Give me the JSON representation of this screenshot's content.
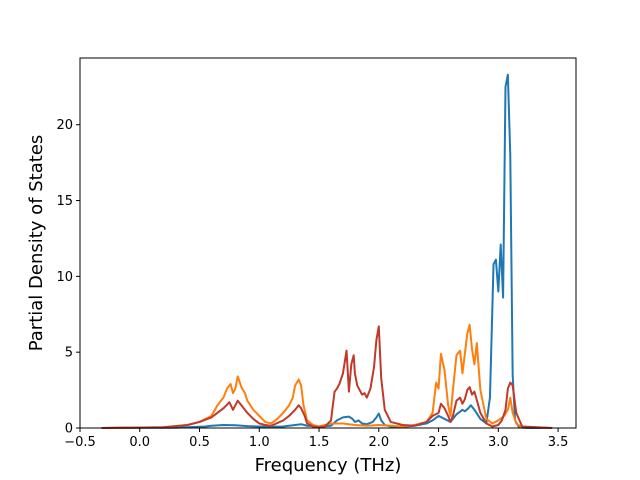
{
  "chart_data": {
    "type": "line",
    "title": "",
    "xlabel": "Frequency (THz)",
    "ylabel": "Partial Density of States",
    "xlim": [
      -0.5,
      3.65
    ],
    "ylim": [
      0,
      24.4
    ],
    "xticks": [
      -0.5,
      0.0,
      0.5,
      1.0,
      1.5,
      2.0,
      2.5,
      3.0,
      3.5
    ],
    "xtick_labels": [
      "−0.5",
      "0.0",
      "0.5",
      "1.0",
      "1.5",
      "2.0",
      "2.5",
      "3.0",
      "3.5"
    ],
    "yticks": [
      0,
      5,
      10,
      15,
      20
    ],
    "ytick_labels": [
      "0",
      "5",
      "10",
      "15",
      "20"
    ],
    "grid": false,
    "legend": false,
    "series": [
      {
        "color": "#1f77b4",
        "x": [
          -0.32,
          0.3,
          0.55,
          0.6,
          0.7,
          0.8,
          0.9,
          1.0,
          1.1,
          1.2,
          1.3,
          1.35,
          1.4,
          1.5,
          1.6,
          1.65,
          1.7,
          1.75,
          1.78,
          1.8,
          1.83,
          1.86,
          1.9,
          1.95,
          1.98,
          2.0,
          2.02,
          2.05,
          2.1,
          2.2,
          2.3,
          2.4,
          2.45,
          2.5,
          2.55,
          2.6,
          2.65,
          2.7,
          2.72,
          2.75,
          2.77,
          2.8,
          2.85,
          2.9,
          2.93,
          2.96,
          2.98,
          3.0,
          3.02,
          3.04,
          3.06,
          3.08,
          3.1,
          3.12,
          3.14,
          3.17,
          3.2,
          3.25,
          3.45
        ],
        "y": [
          0,
          0.02,
          0.1,
          0.15,
          0.2,
          0.18,
          0.12,
          0.1,
          0.08,
          0.1,
          0.2,
          0.25,
          0.15,
          0.1,
          0.15,
          0.5,
          0.7,
          0.75,
          0.6,
          0.4,
          0.5,
          0.3,
          0.25,
          0.4,
          0.7,
          0.95,
          0.5,
          0.2,
          0.1,
          0.08,
          0.15,
          0.3,
          0.5,
          0.8,
          0.6,
          0.4,
          0.9,
          1.2,
          1.1,
          1.3,
          1.5,
          1.2,
          0.6,
          0.3,
          2.0,
          10.8,
          11.1,
          9.0,
          12.1,
          8.6,
          22.5,
          23.3,
          18.0,
          3.5,
          0.5,
          0.1,
          0.02,
          0,
          0
        ]
      },
      {
        "color": "#ff7f0e",
        "x": [
          -0.32,
          0.2,
          0.4,
          0.5,
          0.6,
          0.65,
          0.7,
          0.73,
          0.76,
          0.78,
          0.8,
          0.82,
          0.85,
          0.88,
          0.9,
          0.95,
          1.0,
          1.05,
          1.1,
          1.15,
          1.2,
          1.25,
          1.28,
          1.3,
          1.33,
          1.35,
          1.37,
          1.4,
          1.45,
          1.5,
          1.55,
          1.6,
          1.7,
          1.8,
          1.9,
          2.0,
          2.1,
          2.2,
          2.3,
          2.4,
          2.45,
          2.48,
          2.5,
          2.52,
          2.55,
          2.58,
          2.6,
          2.62,
          2.65,
          2.68,
          2.7,
          2.72,
          2.74,
          2.76,
          2.78,
          2.8,
          2.82,
          2.85,
          2.9,
          2.95,
          3.0,
          3.05,
          3.08,
          3.1,
          3.12,
          3.15,
          3.2,
          3.45
        ],
        "y": [
          0,
          0.05,
          0.2,
          0.4,
          0.8,
          1.5,
          2.0,
          2.6,
          2.9,
          2.3,
          2.6,
          3.4,
          2.7,
          2.3,
          1.8,
          1.2,
          0.8,
          0.4,
          0.3,
          0.6,
          1.0,
          1.5,
          2.0,
          2.8,
          3.2,
          2.8,
          1.5,
          0.5,
          0.2,
          0.1,
          0.2,
          0.3,
          0.3,
          0.2,
          0.15,
          0.2,
          0.15,
          0.1,
          0.2,
          0.4,
          1.0,
          3.0,
          2.6,
          4.9,
          3.8,
          1.5,
          0.8,
          2.5,
          4.8,
          5.1,
          3.6,
          4.9,
          6.2,
          6.8,
          5.2,
          4.2,
          5.6,
          2.5,
          0.6,
          0.3,
          0.5,
          0.8,
          1.2,
          2.0,
          1.0,
          0.3,
          0.05,
          0
        ]
      },
      {
        "color": "#c0392b",
        "x": [
          -0.32,
          0.2,
          0.4,
          0.5,
          0.6,
          0.65,
          0.7,
          0.75,
          0.78,
          0.82,
          0.85,
          0.9,
          0.95,
          1.0,
          1.05,
          1.1,
          1.2,
          1.25,
          1.3,
          1.33,
          1.35,
          1.38,
          1.4,
          1.45,
          1.5,
          1.55,
          1.6,
          1.63,
          1.65,
          1.67,
          1.7,
          1.73,
          1.75,
          1.77,
          1.79,
          1.8,
          1.82,
          1.84,
          1.86,
          1.88,
          1.9,
          1.93,
          1.96,
          1.98,
          2.0,
          2.02,
          2.05,
          2.1,
          2.2,
          2.3,
          2.4,
          2.45,
          2.5,
          2.52,
          2.55,
          2.58,
          2.6,
          2.62,
          2.65,
          2.68,
          2.7,
          2.72,
          2.74,
          2.76,
          2.78,
          2.8,
          2.85,
          2.9,
          2.95,
          3.0,
          3.03,
          3.06,
          3.08,
          3.1,
          3.12,
          3.15,
          3.2,
          3.45
        ],
        "y": [
          0,
          0.05,
          0.2,
          0.4,
          0.7,
          1.0,
          1.3,
          1.7,
          1.2,
          1.8,
          1.5,
          1.0,
          0.6,
          0.3,
          0.2,
          0.15,
          0.5,
          0.8,
          1.2,
          1.5,
          1.3,
          0.8,
          0.3,
          0.1,
          0.05,
          0.1,
          0.5,
          2.4,
          2.6,
          2.9,
          3.6,
          5.1,
          2.4,
          4.2,
          4.8,
          3.6,
          2.8,
          2.5,
          2.2,
          2.3,
          2.0,
          2.6,
          4.0,
          5.8,
          6.7,
          3.3,
          1.2,
          0.4,
          0.2,
          0.15,
          0.4,
          0.8,
          1.0,
          1.6,
          1.3,
          0.8,
          0.4,
          0.8,
          1.8,
          2.0,
          1.6,
          1.9,
          2.5,
          2.7,
          2.2,
          2.4,
          1.0,
          0.3,
          0.1,
          0.2,
          0.5,
          1.2,
          2.6,
          3.0,
          2.8,
          1.0,
          0.1,
          0
        ]
      }
    ]
  }
}
